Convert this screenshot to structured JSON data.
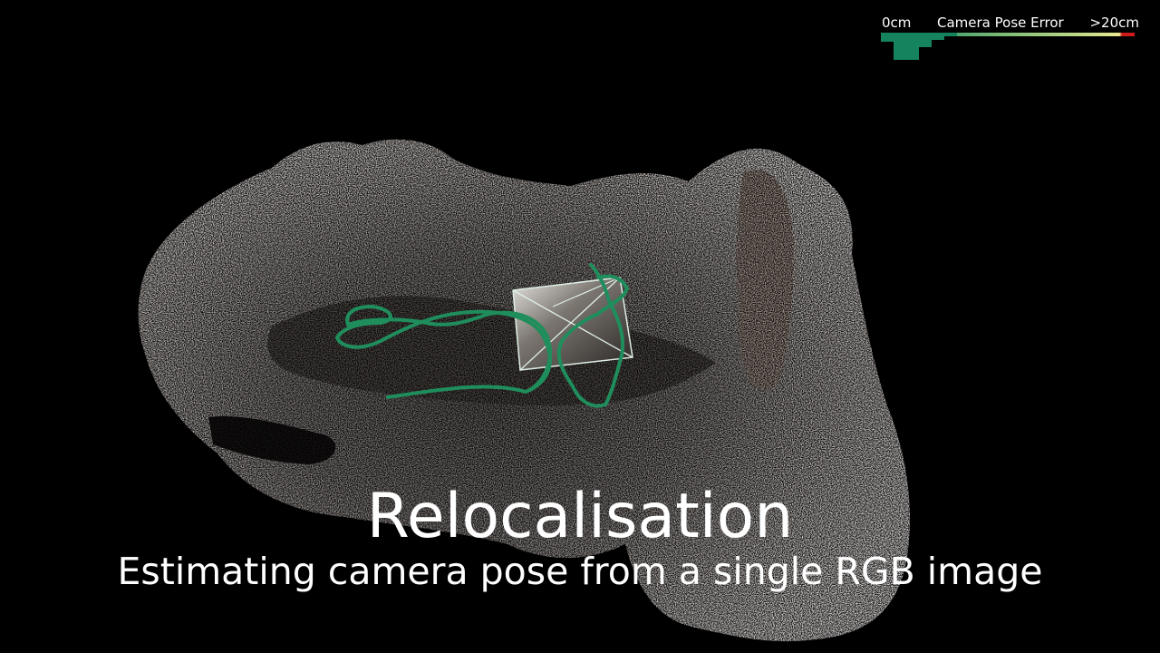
{
  "legend": {
    "min_label": "0cm",
    "title": "Camera Pose Error",
    "max_label": ">20cm",
    "gradient": [
      "#15845e",
      "#3a9a6a",
      "#8cc47a",
      "#cfe08c",
      "#e8e890",
      "#d11a1a"
    ],
    "histogram_color": "#15845e"
  },
  "heading": {
    "title": "Relocalisation",
    "subtitle": "Estimating camera pose from a single RGB image"
  },
  "scene": {
    "trajectory_color": "#1f8e5c",
    "frustum_color": "#dfeee6"
  }
}
